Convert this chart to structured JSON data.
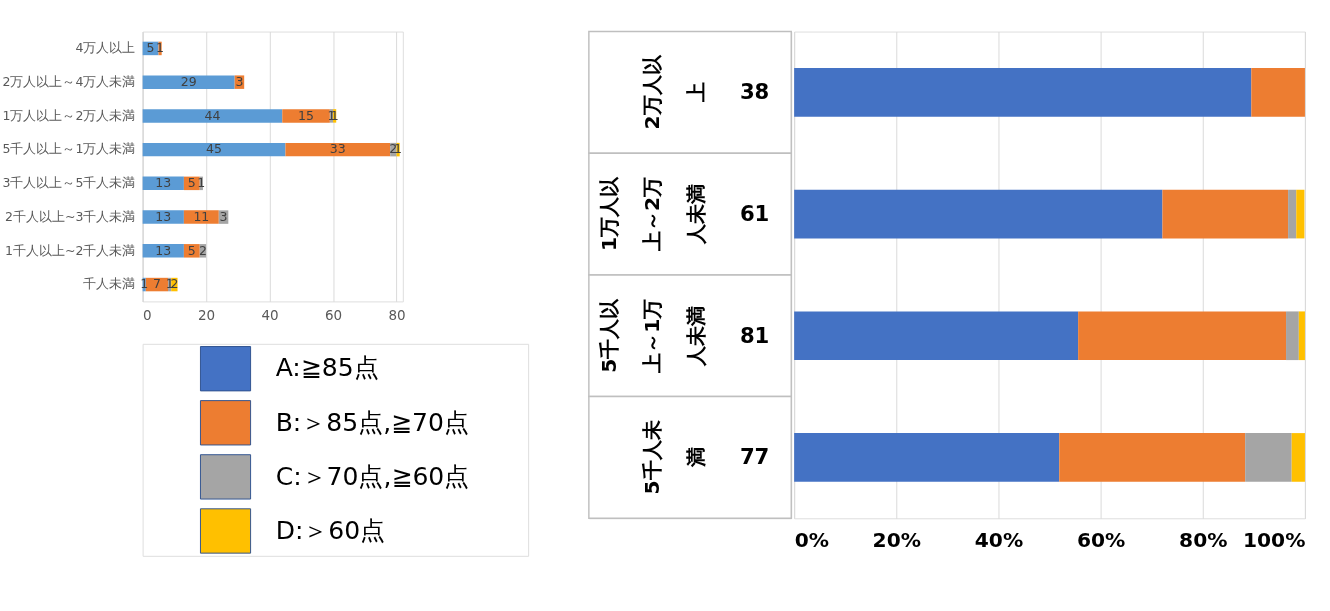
{
  "chart_data": [
    {
      "type": "bar",
      "orientation": "horizontal",
      "stacked": true,
      "categories": [
        "4万人以上",
        "2万人以上～4万人未満",
        "1万人以上～2万人未満",
        "5千人以上～1万人未満",
        "3千人以上～5千人未満",
        "2千人以上~3千人未満",
        "1千人以上~2千人未満",
        "千人未満"
      ],
      "series": [
        {
          "color": "#5b9bd5",
          "values": [
            5,
            29,
            44,
            45,
            13,
            13,
            13,
            1
          ]
        },
        {
          "color": "#ed7d31",
          "values": [
            1,
            3,
            15,
            33,
            5,
            11,
            5,
            7
          ]
        },
        {
          "color": "#a5a5a5",
          "values": [
            null,
            null,
            1,
            2,
            1,
            3,
            2,
            1
          ]
        },
        {
          "color": "#ffc000",
          "values": [
            null,
            null,
            1,
            1,
            null,
            null,
            null,
            2
          ]
        }
      ],
      "xlim": [
        0,
        82
      ],
      "xticks": [
        0,
        20,
        40,
        60,
        80
      ],
      "grid": "x",
      "data_labels": true
    },
    {
      "type": "bar",
      "orientation": "horizontal",
      "stacked": true,
      "categories": [
        "2万人以上",
        "1万人以上～2万人未満",
        "5千人以上～1万人未満",
        "5千人未満"
      ],
      "series": [
        {
          "name": "A:≧85点",
          "color": "#4472c4",
          "values": [
            89.5,
            72.1,
            55.6,
            51.9
          ]
        },
        {
          "name": "B:＞85点,≧70点",
          "color": "#ed7d31",
          "values": [
            10.5,
            24.6,
            40.7,
            36.4
          ]
        },
        {
          "name": "C:＞70点,≧60点",
          "color": "#a5a5a5",
          "values": [
            null,
            1.6,
            2.5,
            9.1
          ]
        },
        {
          "name": "D:＞60点",
          "color": "#ffc000",
          "values": [
            null,
            1.6,
            1.2,
            2.6
          ]
        }
      ],
      "annotations": [
        "38",
        "61",
        "81",
        "77"
      ],
      "xlim": [
        0,
        100
      ],
      "xticks": [
        {
          "value": 0,
          "label": "0%"
        },
        {
          "value": 20,
          "label": "20%"
        },
        {
          "value": 40,
          "label": "40%"
        },
        {
          "value": 60,
          "label": "60%"
        },
        {
          "value": 80,
          "label": "80%"
        },
        {
          "value": 100,
          "label": "100%"
        }
      ],
      "grid": "x",
      "legend": "left"
    }
  ]
}
